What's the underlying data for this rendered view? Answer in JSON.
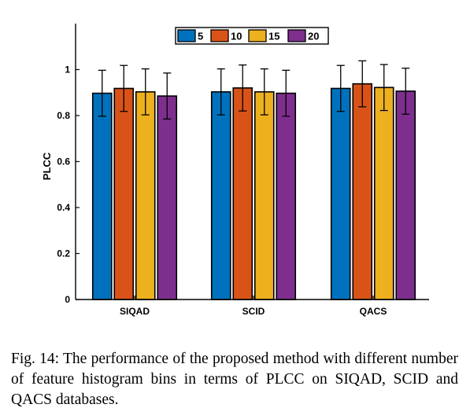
{
  "chart_data": {
    "type": "bar",
    "ylabel": "PLCC",
    "xlabel": "",
    "ylim": [
      0,
      1.2
    ],
    "yticks": [
      0,
      0.2,
      0.4,
      0.6,
      0.8,
      1
    ],
    "ytick_labels": [
      "0",
      "0.2",
      "0.4",
      "0.6",
      "0.8",
      "1"
    ],
    "categories": [
      "SIQAD",
      "SCID",
      "QACS"
    ],
    "legend_position": "top-center",
    "grid": false,
    "error_bars": true,
    "series": [
      {
        "name": "5",
        "color": "#0072BD",
        "values": [
          0.897,
          0.903,
          0.918
        ],
        "errors": [
          0.1,
          0.1,
          0.1
        ]
      },
      {
        "name": "10",
        "color": "#D95319",
        "values": [
          0.918,
          0.92,
          0.938
        ],
        "errors": [
          0.1,
          0.1,
          0.1
        ]
      },
      {
        "name": "15",
        "color": "#EDB120",
        "values": [
          0.903,
          0.903,
          0.922
        ],
        "errors": [
          0.1,
          0.1,
          0.1
        ]
      },
      {
        "name": "20",
        "color": "#7E2F8E",
        "values": [
          0.885,
          0.897,
          0.906
        ],
        "errors": [
          0.1,
          0.1,
          0.1
        ]
      }
    ]
  },
  "caption": "Fig. 14: The performance of the proposed method with different number of feature histogram bins in terms of PLCC on SIQAD, SCID and QACS databases."
}
